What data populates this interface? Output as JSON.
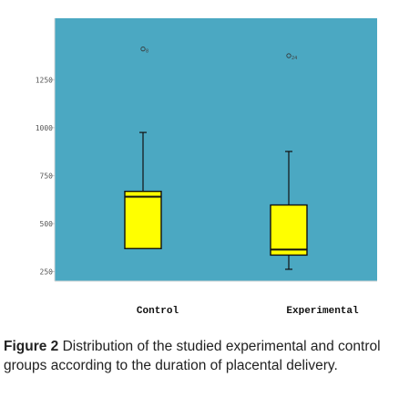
{
  "chart_data": {
    "type": "boxplot",
    "title": "",
    "xlabel": "",
    "ylabel": "",
    "ylim": [
      200,
      1570
    ],
    "yticks": [
      250,
      500,
      750,
      1000,
      1250
    ],
    "grid": false,
    "plot_background": "#4ba8c2",
    "box_color": "#ffff00",
    "categories": [
      "Control",
      "Experimental"
    ],
    "boxes": [
      {
        "name": "Control",
        "whisker_low": 370,
        "q1": 370,
        "median": 640,
        "q3": 668,
        "whisker_high": 975,
        "outliers": [
          {
            "value": 1410,
            "label": "8"
          }
        ]
      },
      {
        "name": "Experimental",
        "whisker_low": 262,
        "q1": 336,
        "median": 365,
        "q3": 597,
        "whisker_high": 876,
        "outliers": [
          {
            "value": 1375,
            "label": "24"
          }
        ]
      }
    ]
  },
  "caption": {
    "label": "Figure 2",
    "text": "Distribution of the studied experimental and control groups according to the duration of placental delivery."
  }
}
